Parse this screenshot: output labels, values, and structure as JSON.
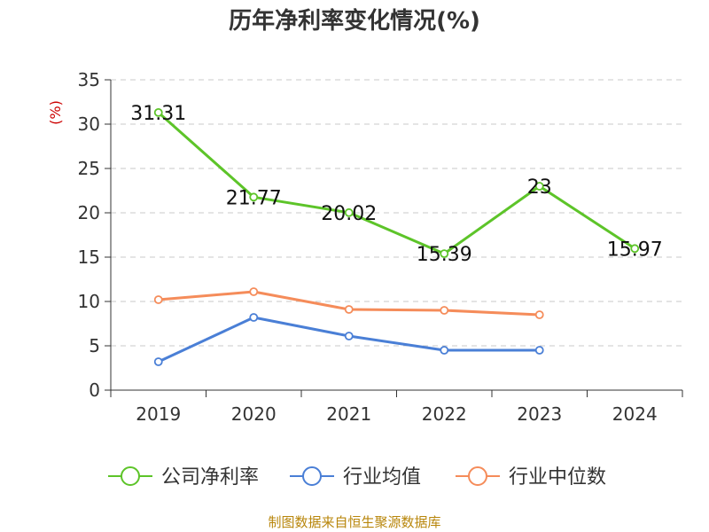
{
  "chart_data": {
    "type": "line",
    "title": "历年净利率变化情况(%)",
    "ylabel": "(%)",
    "xlabel": "",
    "categories": [
      "2019",
      "2020",
      "2021",
      "2022",
      "2023",
      "2024"
    ],
    "ylim": [
      0,
      35
    ],
    "yticks": [
      0,
      5,
      10,
      15,
      20,
      25,
      30,
      35
    ],
    "grid": true,
    "legend_position": "bottom",
    "series": [
      {
        "name": "公司净利率",
        "color": "#5dc429",
        "values": [
          31.31,
          21.77,
          20.02,
          15.39,
          23,
          15.97
        ],
        "labels": [
          "31.31",
          "21.77",
          "20.02",
          "15.39",
          "23",
          "15.97"
        ]
      },
      {
        "name": "行业均值",
        "color": "#4a7fd6",
        "values": [
          3.2,
          8.2,
          6.1,
          4.5,
          4.5,
          null
        ]
      },
      {
        "name": "行业中位数",
        "color": "#f58c5a",
        "values": [
          10.2,
          11.1,
          9.1,
          9.0,
          8.5,
          null
        ]
      }
    ]
  },
  "source": "制图数据来自恒生聚源数据库"
}
